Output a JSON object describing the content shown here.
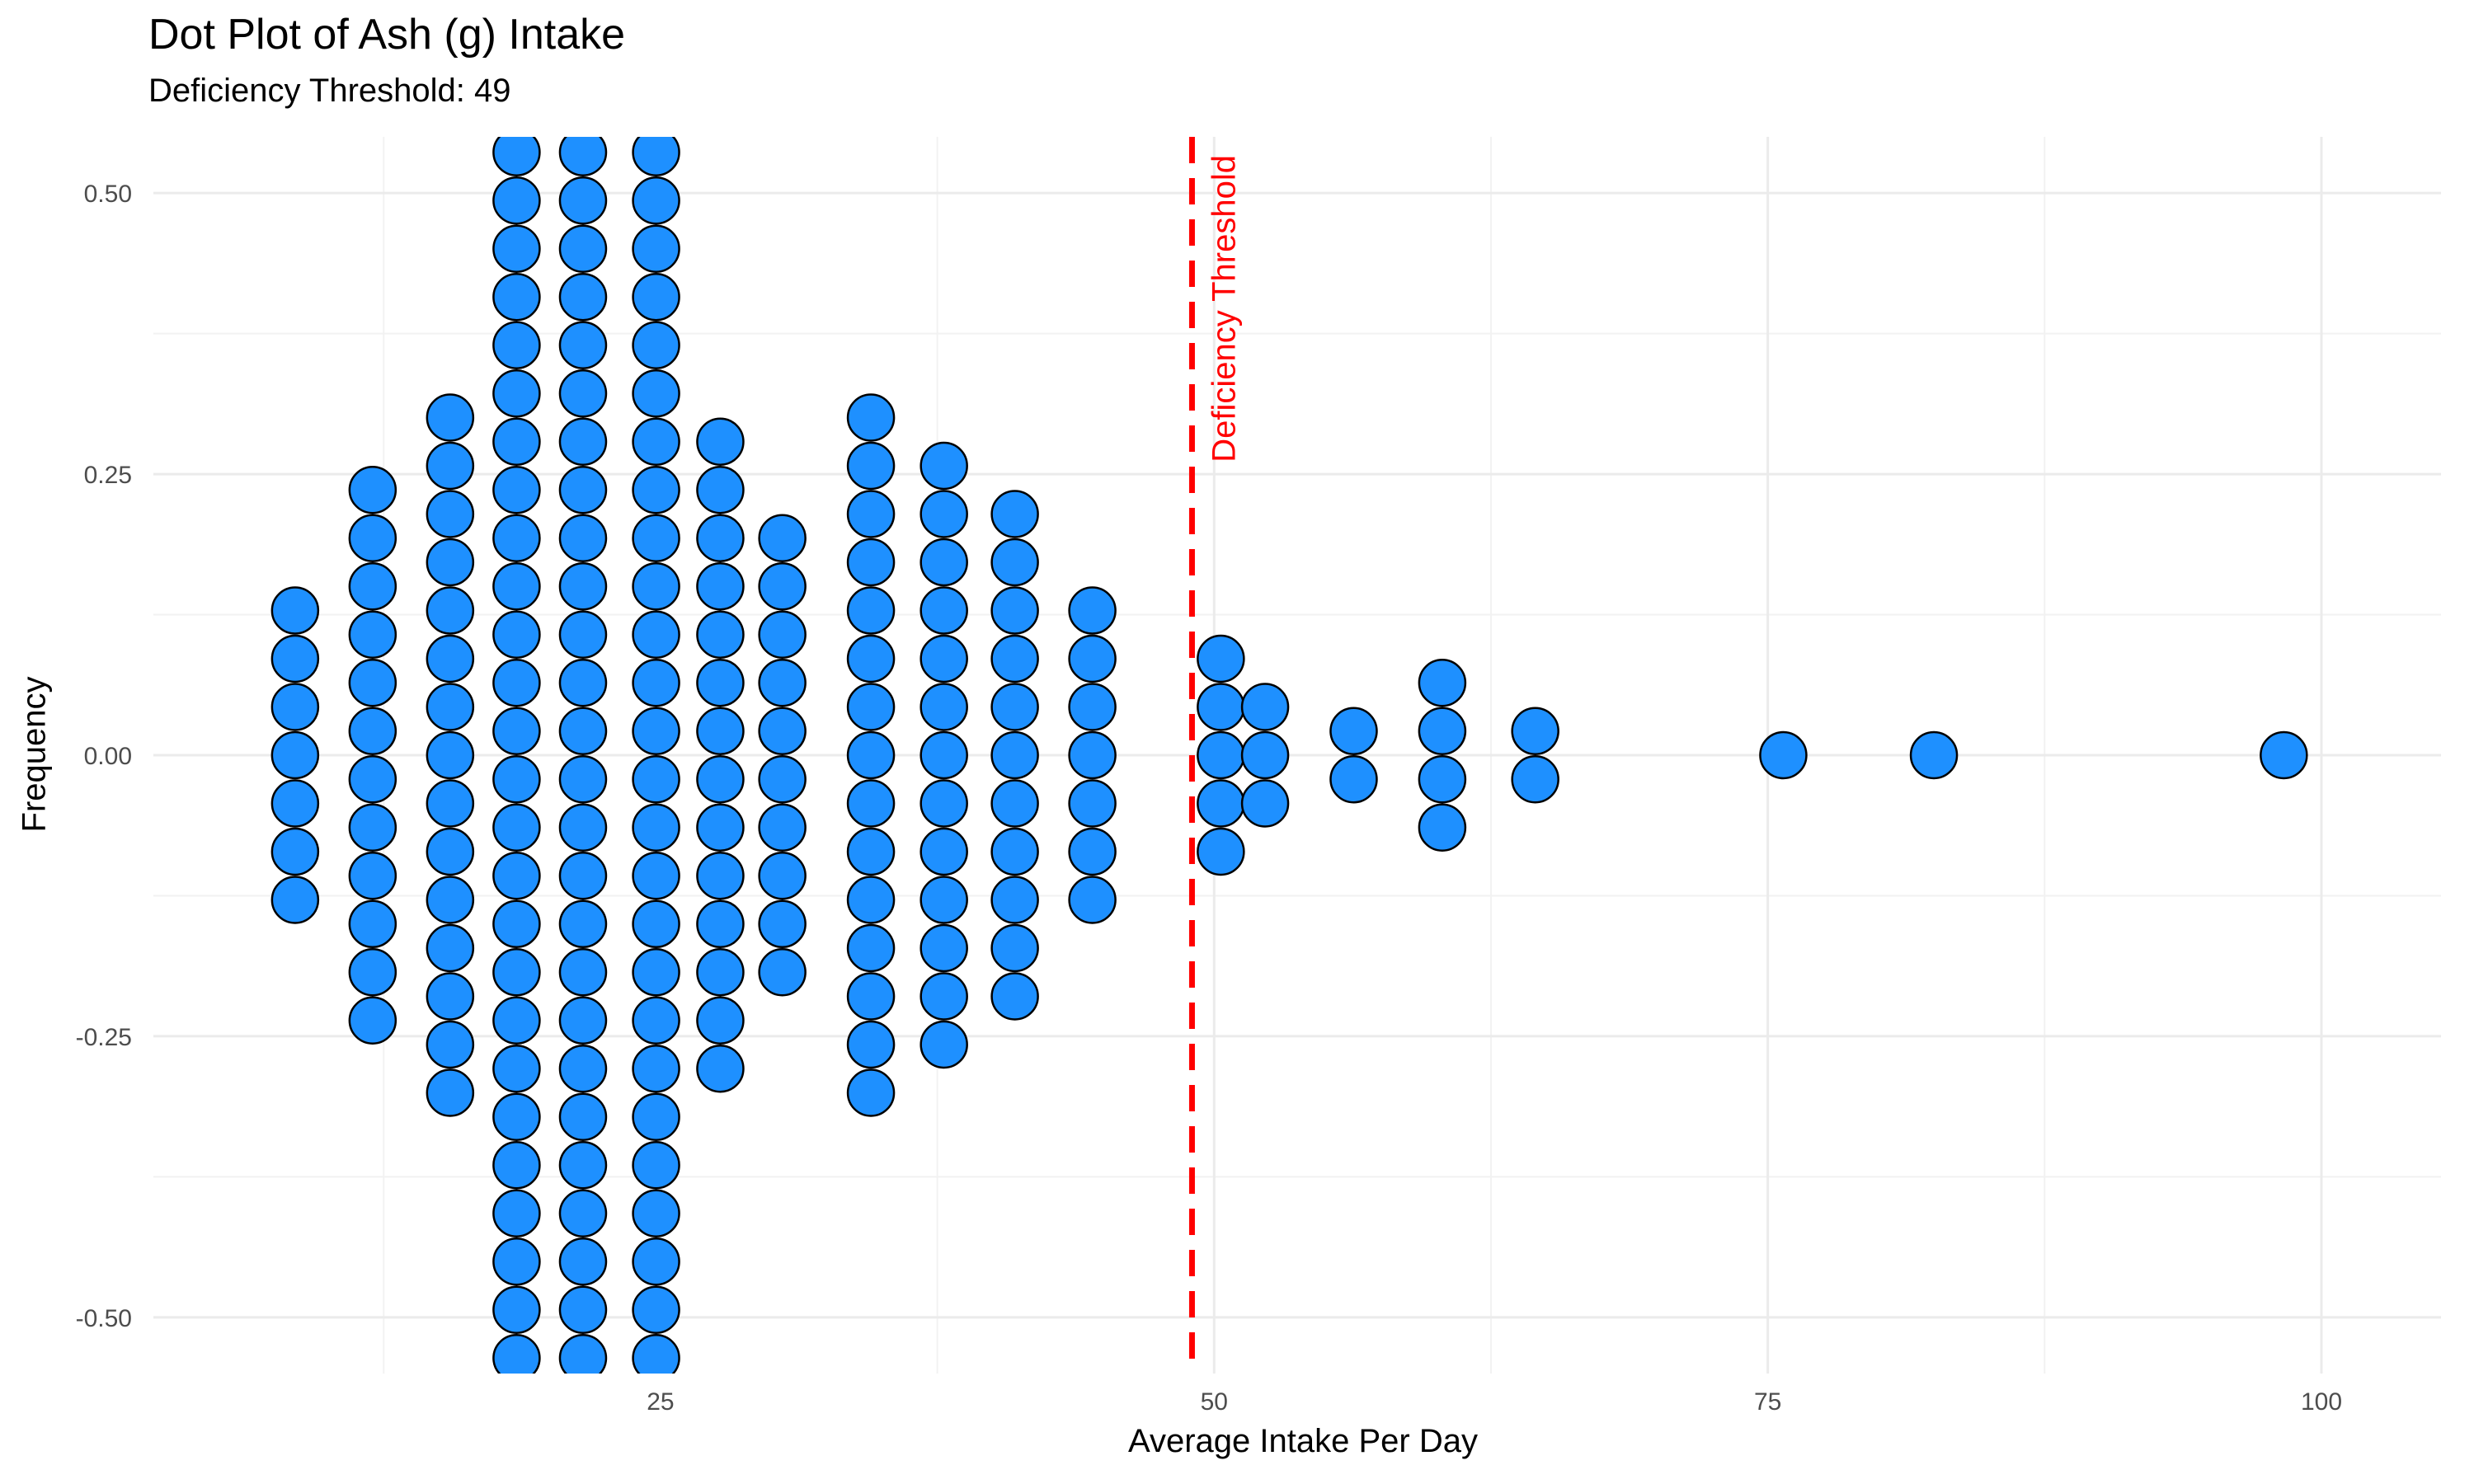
{
  "chart_data": {
    "type": "dot",
    "title": "Dot Plot of Ash (g) Intake",
    "subtitle": "Deficiency Threshold: 49",
    "xlabel": "Average Intake Per Day",
    "ylabel": "Frequency",
    "xlim": [
      2.1,
      105.4
    ],
    "ylim": [
      -0.55,
      0.55
    ],
    "x_ticks": [
      25,
      50,
      75,
      100
    ],
    "x_tick_labels": [
      "25",
      "50",
      "75",
      "100"
    ],
    "y_ticks": [
      -0.5,
      -0.25,
      0,
      0.25,
      0.5
    ],
    "y_tick_labels": [
      "-0.50",
      "-0.25",
      "0.00",
      "0.25",
      "0.50"
    ],
    "grid": true,
    "threshold": {
      "value": 49,
      "label": "Deficiency Threshold",
      "color": "#FF0000",
      "style": "dashed"
    },
    "dot_fill": "#1E90FF",
    "dot_stroke": "#000000",
    "stacks": [
      {
        "x": 8.5,
        "count": 7
      },
      {
        "x": 12.0,
        "count": 12
      },
      {
        "x": 15.5,
        "count": 15
      },
      {
        "x": 18.5,
        "count": 26
      },
      {
        "x": 21.5,
        "count": 26
      },
      {
        "x": 24.8,
        "count": 26
      },
      {
        "x": 27.7,
        "count": 14
      },
      {
        "x": 30.5,
        "count": 10
      },
      {
        "x": 34.5,
        "count": 15
      },
      {
        "x": 37.8,
        "count": 13
      },
      {
        "x": 41.0,
        "count": 11
      },
      {
        "x": 44.5,
        "count": 7
      },
      {
        "x": 50.3,
        "count": 5
      },
      {
        "x": 52.3,
        "count": 3
      },
      {
        "x": 56.3,
        "count": 2
      },
      {
        "x": 60.3,
        "count": 4
      },
      {
        "x": 64.5,
        "count": 2
      },
      {
        "x": 75.7,
        "count": 1
      },
      {
        "x": 82.5,
        "count": 1
      },
      {
        "x": 98.3,
        "count": 1
      }
    ]
  }
}
